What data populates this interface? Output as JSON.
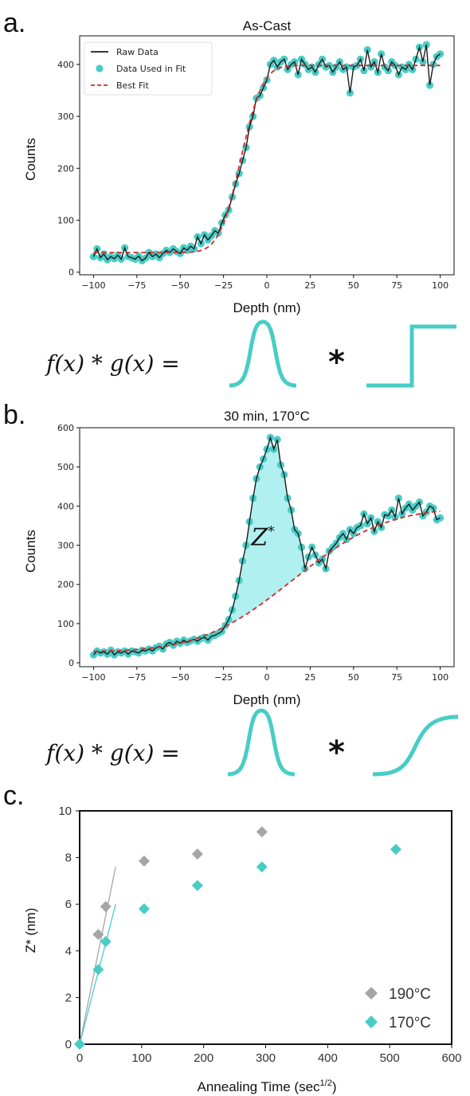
{
  "colors": {
    "teal": "#48cdc6",
    "red": "#d62728",
    "gray": "#a6a6a6",
    "fill": "#b0f0f0"
  },
  "panel_a": {
    "letter": "a.",
    "equation": "f(x) * g(x) =",
    "star": "*"
  },
  "panel_b": {
    "letter": "b.",
    "equation": "f(x) * g(x) =",
    "star": "*",
    "annotation": "Z*"
  },
  "panel_c": {
    "letter": "c."
  },
  "chart_data": [
    {
      "id": "a",
      "type": "scatter",
      "title": "As-Cast",
      "xlabel": "Depth (nm)",
      "ylabel": "Counts",
      "xlim": [
        -108,
        108
      ],
      "ylim": [
        -5,
        455
      ],
      "xticks": [
        -100,
        -75,
        -50,
        -25,
        0,
        25,
        50,
        75,
        100
      ],
      "yticks": [
        0,
        100,
        200,
        300,
        400
      ],
      "legend": [
        "Raw Data",
        "Data Used in Fit",
        "Best Fit"
      ],
      "legend_position": "upper-left",
      "fit": {
        "model": "step convolved with gaussian",
        "low": 38,
        "high": 398,
        "center": -15,
        "width": 10
      },
      "series_points": [
        [
          -100,
          30
        ],
        [
          -98,
          45
        ],
        [
          -96,
          28
        ],
        [
          -94,
          35
        ],
        [
          -92,
          24
        ],
        [
          -90,
          30
        ],
        [
          -88,
          26
        ],
        [
          -86,
          33
        ],
        [
          -84,
          25
        ],
        [
          -82,
          47
        ],
        [
          -80,
          30
        ],
        [
          -78,
          28
        ],
        [
          -76,
          25
        ],
        [
          -74,
          31
        ],
        [
          -72,
          22
        ],
        [
          -70,
          27
        ],
        [
          -68,
          38
        ],
        [
          -66,
          30
        ],
        [
          -64,
          35
        ],
        [
          -62,
          28
        ],
        [
          -60,
          36
        ],
        [
          -58,
          42
        ],
        [
          -56,
          38
        ],
        [
          -54,
          45
        ],
        [
          -52,
          40
        ],
        [
          -50,
          36
        ],
        [
          -48,
          47
        ],
        [
          -46,
          42
        ],
        [
          -44,
          50
        ],
        [
          -42,
          45
        ],
        [
          -40,
          68
        ],
        [
          -38,
          55
        ],
        [
          -36,
          72
        ],
        [
          -34,
          62
        ],
        [
          -32,
          70
        ],
        [
          -30,
          80
        ],
        [
          -28,
          75
        ],
        [
          -26,
          95
        ],
        [
          -24,
          110
        ],
        [
          -22,
          120
        ],
        [
          -20,
          145
        ],
        [
          -18,
          170
        ],
        [
          -16,
          190
        ],
        [
          -14,
          215
        ],
        [
          -12,
          240
        ],
        [
          -10,
          280
        ],
        [
          -8,
          300
        ],
        [
          -6,
          335
        ],
        [
          -4,
          340
        ],
        [
          -2,
          355
        ],
        [
          0,
          370
        ],
        [
          2,
          400
        ],
        [
          4,
          408
        ],
        [
          6,
          395
        ],
        [
          8,
          405
        ],
        [
          10,
          410
        ],
        [
          12,
          390
        ],
        [
          14,
          400
        ],
        [
          16,
          405
        ],
        [
          18,
          380
        ],
        [
          20,
          410
        ],
        [
          22,
          400
        ],
        [
          24,
          390
        ],
        [
          26,
          395
        ],
        [
          28,
          385
        ],
        [
          30,
          400
        ],
        [
          32,
          410
        ],
        [
          34,
          395
        ],
        [
          36,
          398
        ],
        [
          38,
          385
        ],
        [
          40,
          395
        ],
        [
          42,
          405
        ],
        [
          44,
          390
        ],
        [
          46,
          395
        ],
        [
          48,
          345
        ],
        [
          50,
          395
        ],
        [
          52,
          398
        ],
        [
          54,
          410
        ],
        [
          56,
          388
        ],
        [
          58,
          428
        ],
        [
          60,
          395
        ],
        [
          62,
          405
        ],
        [
          64,
          385
        ],
        [
          66,
          420
        ],
        [
          68,
          395
        ],
        [
          70,
          388
        ],
        [
          72,
          405
        ],
        [
          74,
          398
        ],
        [
          76,
          380
        ],
        [
          78,
          395
        ],
        [
          80,
          390
        ],
        [
          82,
          400
        ],
        [
          84,
          390
        ],
        [
          86,
          410
        ],
        [
          88,
          433
        ],
        [
          90,
          405
        ],
        [
          92,
          438
        ],
        [
          94,
          360
        ],
        [
          96,
          400
        ],
        [
          98,
          415
        ],
        [
          100,
          420
        ]
      ]
    },
    {
      "id": "b",
      "type": "scatter",
      "title": "30 min, 170°C",
      "xlabel": "Depth (nm)",
      "ylabel": "Counts",
      "xlim": [
        -108,
        108
      ],
      "ylim": [
        -10,
        600
      ],
      "xticks": [
        -100,
        -75,
        -50,
        -25,
        0,
        25,
        50,
        75,
        100
      ],
      "yticks": [
        0,
        100,
        200,
        300,
        400,
        500,
        600
      ],
      "fit": {
        "model": "erf step",
        "low": 28,
        "high": 395,
        "center": 15,
        "width": 42
      },
      "series_points": [
        [
          -100,
          20
        ],
        [
          -98,
          30
        ],
        [
          -96,
          25
        ],
        [
          -94,
          28
        ],
        [
          -92,
          22
        ],
        [
          -90,
          32
        ],
        [
          -88,
          20
        ],
        [
          -86,
          28
        ],
        [
          -84,
          25
        ],
        [
          -82,
          30
        ],
        [
          -80,
          22
        ],
        [
          -78,
          30
        ],
        [
          -76,
          28
        ],
        [
          -74,
          25
        ],
        [
          -72,
          32
        ],
        [
          -70,
          30
        ],
        [
          -68,
          35
        ],
        [
          -66,
          30
        ],
        [
          -64,
          38
        ],
        [
          -62,
          42
        ],
        [
          -60,
          35
        ],
        [
          -58,
          48
        ],
        [
          -56,
          52
        ],
        [
          -54,
          45
        ],
        [
          -52,
          55
        ],
        [
          -50,
          50
        ],
        [
          -48,
          58
        ],
        [
          -46,
          52
        ],
        [
          -44,
          56
        ],
        [
          -42,
          60
        ],
        [
          -40,
          55
        ],
        [
          -38,
          62
        ],
        [
          -36,
          65
        ],
        [
          -34,
          58
        ],
        [
          -32,
          68
        ],
        [
          -30,
          70
        ],
        [
          -28,
          75
        ],
        [
          -26,
          80
        ],
        [
          -24,
          95
        ],
        [
          -22,
          110
        ],
        [
          -20,
          135
        ],
        [
          -18,
          170
        ],
        [
          -16,
          210
        ],
        [
          -14,
          260
        ],
        [
          -12,
          300
        ],
        [
          -10,
          360
        ],
        [
          -8,
          420
        ],
        [
          -6,
          470
        ],
        [
          -4,
          500
        ],
        [
          -2,
          520
        ],
        [
          0,
          545
        ],
        [
          2,
          575
        ],
        [
          4,
          545
        ],
        [
          6,
          570
        ],
        [
          8,
          505
        ],
        [
          10,
          480
        ],
        [
          12,
          420
        ],
        [
          14,
          390
        ],
        [
          16,
          340
        ],
        [
          18,
          330
        ],
        [
          20,
          295
        ],
        [
          22,
          240
        ],
        [
          24,
          270
        ],
        [
          26,
          295
        ],
        [
          28,
          275
        ],
        [
          30,
          255
        ],
        [
          32,
          265
        ],
        [
          34,
          240
        ],
        [
          36,
          285
        ],
        [
          38,
          295
        ],
        [
          40,
          305
        ],
        [
          42,
          320
        ],
        [
          44,
          330
        ],
        [
          46,
          315
        ],
        [
          48,
          340
        ],
        [
          50,
          330
        ],
        [
          52,
          345
        ],
        [
          54,
          350
        ],
        [
          56,
          380
        ],
        [
          58,
          355
        ],
        [
          60,
          370
        ],
        [
          62,
          335
        ],
        [
          64,
          360
        ],
        [
          66,
          345
        ],
        [
          68,
          378
        ],
        [
          70,
          375
        ],
        [
          72,
          390
        ],
        [
          74,
          372
        ],
        [
          76,
          420
        ],
        [
          78,
          380
        ],
        [
          80,
          395
        ],
        [
          82,
          405
        ],
        [
          84,
          390
        ],
        [
          86,
          400
        ],
        [
          88,
          410
        ],
        [
          90,
          375
        ],
        [
          92,
          385
        ],
        [
          94,
          400
        ],
        [
          96,
          395
        ],
        [
          98,
          365
        ],
        [
          100,
          370
        ]
      ]
    },
    {
      "id": "c",
      "type": "scatter",
      "xlabel": "Annealing Time (sec",
      "xlabel_sup": "1/2",
      "xlabel_end": ")",
      "ylabel": "Z* (nm)",
      "xlim": [
        0,
        600
      ],
      "ylim": [
        0,
        10
      ],
      "xticks": [
        0,
        100,
        200,
        300,
        400,
        500,
        600
      ],
      "yticks": [
        0,
        2,
        4,
        6,
        8,
        10
      ],
      "legend_position": "lower-right",
      "series": [
        {
          "name": "190°C",
          "color": "#a6a6a6",
          "points": [
            [
              0,
              0
            ],
            [
              30,
              4.7
            ],
            [
              42,
              5.9
            ],
            [
              104,
              7.85
            ],
            [
              190,
              8.15
            ],
            [
              294,
              9.1
            ]
          ],
          "line": [
            [
              0,
              0
            ],
            [
              58,
              7.6
            ]
          ]
        },
        {
          "name": "170°C",
          "color": "#48cdc6",
          "points": [
            [
              0,
              0
            ],
            [
              30,
              3.2
            ],
            [
              42,
              4.4
            ],
            [
              104,
              5.8
            ],
            [
              190,
              6.8
            ],
            [
              294,
              7.6
            ],
            [
              510,
              8.35
            ]
          ],
          "line": [
            [
              0,
              0
            ],
            [
              58,
              6.0
            ]
          ]
        }
      ]
    }
  ]
}
